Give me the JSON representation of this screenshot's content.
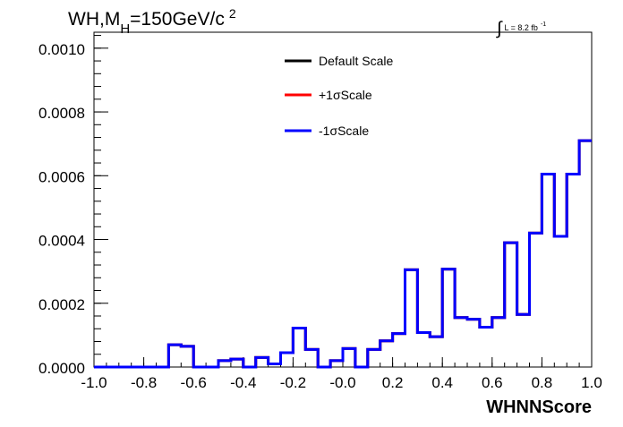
{
  "chart_data": {
    "type": "line",
    "step": true,
    "title_main": "WH,M",
    "title_sub": "H",
    "title_rest": "=150GeV/c",
    "title_sup": "2",
    "lumi_integral": "∫",
    "lumi_text": "L = 8.2 fb",
    "lumi_sup": "-1",
    "xlabel": "WHNNScore",
    "ylabel": "",
    "xlim": [
      -1.0,
      1.0
    ],
    "ylim": [
      0.0,
      0.00105
    ],
    "x_ticks": [
      -1.0,
      -0.8,
      -0.6,
      -0.4,
      -0.2,
      0.0,
      0.2,
      0.4,
      0.6,
      0.8,
      1.0
    ],
    "x_tick_labels": [
      "-1.0",
      "-0.8",
      "-0.6",
      "-0.4",
      "-0.2",
      "-0.0",
      "0.2",
      "0.4",
      "0.6",
      "0.8",
      "1.0"
    ],
    "y_ticks": [
      0.0,
      0.0002,
      0.0004,
      0.0006,
      0.0008,
      0.001
    ],
    "y_tick_labels": [
      "0.0000",
      "0.0002",
      "0.0004",
      "0.0006",
      "0.0008",
      "0.0010"
    ],
    "bin_edges": [
      -1.0,
      -0.95,
      -0.9,
      -0.85,
      -0.8,
      -0.75,
      -0.7,
      -0.65,
      -0.6,
      -0.55,
      -0.5,
      -0.45,
      -0.4,
      -0.35,
      -0.3,
      -0.25,
      -0.2,
      -0.15,
      -0.1,
      -0.05,
      0.0,
      0.05,
      0.1,
      0.15,
      0.2,
      0.25,
      0.3,
      0.35,
      0.4,
      0.45,
      0.5,
      0.55,
      0.6,
      0.65,
      0.7,
      0.75,
      0.8,
      0.85,
      0.9,
      0.95,
      1.0
    ],
    "legend": {
      "position": "top-center"
    },
    "series": [
      {
        "name": "Default Scale",
        "color": "#000000",
        "values": [
          0,
          0,
          0,
          0,
          0,
          0,
          7e-05,
          6.5e-05,
          0,
          0,
          2e-05,
          2.5e-05,
          0,
          3e-05,
          1e-05,
          4.5e-05,
          0.000122,
          5.5e-05,
          0,
          2e-05,
          5.8e-05,
          0,
          5.5e-05,
          8.2e-05,
          0.000105,
          0.000305,
          0.000108,
          9.5e-05,
          0.000307,
          0.000155,
          0.00015,
          0.000125,
          0.000155,
          0.00039,
          0.000165,
          0.00042,
          0.000605,
          0.00041,
          0.000605,
          0.00071
        ]
      },
      {
        "name": "+1σScale",
        "color": "#ff0000",
        "values": [
          0,
          0,
          0,
          0,
          0,
          0,
          7e-05,
          6.5e-05,
          0,
          0,
          2e-05,
          2.5e-05,
          0,
          3e-05,
          1e-05,
          4.5e-05,
          0.000122,
          5.5e-05,
          0,
          2e-05,
          5.8e-05,
          0,
          5.5e-05,
          8.2e-05,
          0.000105,
          0.000305,
          0.000108,
          9.5e-05,
          0.000307,
          0.000155,
          0.00015,
          0.000125,
          0.000155,
          0.00039,
          0.000165,
          0.00042,
          0.000605,
          0.00041,
          0.000605,
          0.00071
        ]
      },
      {
        "name": "-1σScale",
        "color": "#0000ff",
        "values": [
          0,
          0,
          0,
          0,
          0,
          0,
          7e-05,
          6.5e-05,
          0,
          0,
          2e-05,
          2.5e-05,
          0,
          3e-05,
          1e-05,
          4.5e-05,
          0.000122,
          5.5e-05,
          0,
          2e-05,
          5.8e-05,
          0,
          5.5e-05,
          8.2e-05,
          0.000105,
          0.000305,
          0.000108,
          9.5e-05,
          0.000307,
          0.000155,
          0.00015,
          0.000125,
          0.000155,
          0.00039,
          0.000165,
          0.00042,
          0.000605,
          0.00041,
          0.000605,
          0.00071
        ]
      }
    ]
  }
}
